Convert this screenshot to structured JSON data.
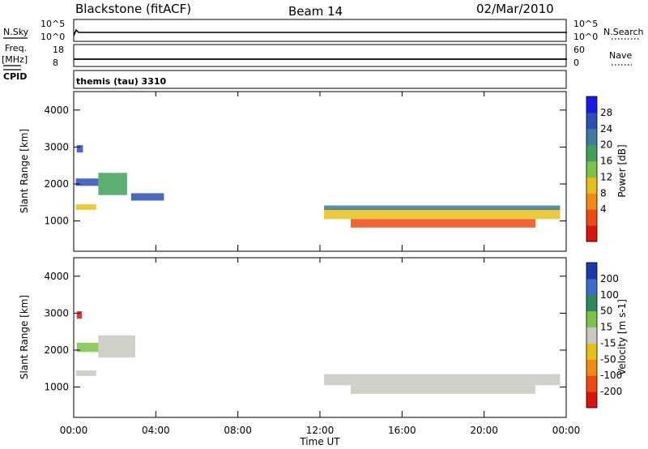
{
  "header": {
    "station": "Blackstone (fitACF)",
    "beam": "Beam 14",
    "date": "02/Mar/2010"
  },
  "strips": {
    "nsky_label": "N.Sky",
    "nsky_ticks": [
      "10^5",
      "10^0"
    ],
    "nsearch_label": "N.Search",
    "nsearch_ticks": [
      "10^5",
      "10^0"
    ],
    "freq_label": "Freq.",
    "freq_unit": "[MHz]",
    "freq_ticks": [
      "18",
      "8"
    ],
    "nave_label": "Nave",
    "nave_ticks": [
      "60",
      "0"
    ],
    "cpid_label": "CPID",
    "cpid_value": "themis (tau) 3310"
  },
  "chart_data": [
    {
      "type": "heatmap",
      "name": "power-panel",
      "xlabel": "",
      "ylabel": "Slant Range [km]",
      "x_range_hours": [
        0,
        24
      ],
      "ylim": [
        180,
        4500
      ],
      "y_ticks": [
        "4000",
        "3000",
        "2000",
        "1000"
      ],
      "y_tick_values": [
        4000,
        3000,
        2000,
        1000
      ],
      "colorbar_label": "Power [dB]",
      "colorbar_ticks": [
        "28",
        "24",
        "20",
        "16",
        "12",
        "8",
        "4"
      ],
      "colorbar_colors": [
        "#1a1ae6",
        "#2b4fb5",
        "#3d7ea0",
        "#3fa05a",
        "#7cc24a",
        "#e6c01a",
        "#f28a1a",
        "#ee4a14",
        "#d8140c"
      ],
      "colorbar_range": [
        0,
        32
      ],
      "echo_bands": [
        {
          "t0": 0.1,
          "t1": 1.1,
          "r0": 1300,
          "r1": 1450,
          "color_index": 5
        },
        {
          "t0": 0.1,
          "t1": 1.2,
          "r0": 1950,
          "r1": 2150,
          "color_index": 1
        },
        {
          "t0": 0.15,
          "t1": 0.45,
          "r0": 2850,
          "r1": 3050,
          "color_index": 1
        },
        {
          "t0": 1.2,
          "t1": 2.6,
          "r0": 1700,
          "r1": 2300,
          "color_index": 3
        },
        {
          "t0": 2.8,
          "t1": 4.4,
          "r0": 1550,
          "r1": 1750,
          "color_index": 1
        },
        {
          "t0": 12.2,
          "t1": 23.7,
          "r0": 1050,
          "r1": 1350,
          "color_index": 5
        },
        {
          "t0": 12.2,
          "t1": 23.7,
          "r0": 1300,
          "r1": 1420,
          "color_index": 2
        },
        {
          "t0": 13.5,
          "t1": 22.5,
          "r0": 820,
          "r1": 1050,
          "color_index": 7
        }
      ]
    },
    {
      "type": "heatmap",
      "name": "velocity-panel",
      "xlabel": "Time UT",
      "ylabel": "Slant Range [km]",
      "x_range_hours": [
        0,
        24
      ],
      "x_ticks": [
        "00:00",
        "04:00",
        "08:00",
        "12:00",
        "16:00",
        "20:00",
        "00:00"
      ],
      "x_tick_hours": [
        0,
        4,
        8,
        12,
        16,
        20,
        24
      ],
      "ylim": [
        180,
        4500
      ],
      "y_ticks": [
        "4000",
        "3000",
        "2000",
        "1000"
      ],
      "y_tick_values": [
        4000,
        3000,
        2000,
        1000
      ],
      "colorbar_label": "Velocity [m s-1]",
      "colorbar_ticks": [
        "200",
        "100",
        "50",
        "15",
        "-15",
        "-50",
        "-100",
        "-200"
      ],
      "colorbar_colors": [
        "#1a3aa8",
        "#3a6cc8",
        "#2e8a5a",
        "#7cc24a",
        "#c8c8c0",
        "#e6c01a",
        "#f28a1a",
        "#ee4a14",
        "#d8140c"
      ],
      "echo_bands": [
        {
          "t0": 0.1,
          "t1": 1.1,
          "r0": 1300,
          "r1": 1450,
          "color_index": 4
        },
        {
          "t0": 0.15,
          "t1": 1.2,
          "r0": 1950,
          "r1": 2200,
          "color_index": 3
        },
        {
          "t0": 0.15,
          "t1": 0.4,
          "r0": 2850,
          "r1": 3050,
          "color_index": 8
        },
        {
          "t0": 1.2,
          "t1": 3.0,
          "r0": 1800,
          "r1": 2400,
          "color_index": 4
        },
        {
          "t0": 12.2,
          "t1": 23.7,
          "r0": 1050,
          "r1": 1350,
          "color_index": 4
        },
        {
          "t0": 13.5,
          "t1": 22.5,
          "r0": 820,
          "r1": 1050,
          "color_index": 4
        }
      ]
    }
  ]
}
